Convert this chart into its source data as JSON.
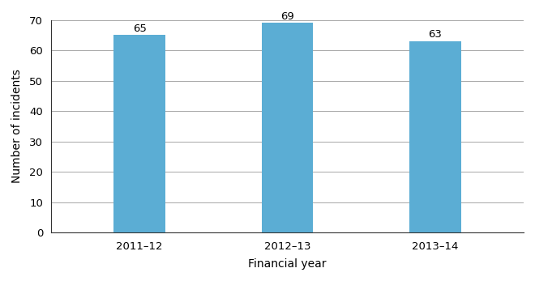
{
  "categories": [
    "2011–12",
    "2012–13",
    "2013–14"
  ],
  "values": [
    65,
    69,
    63
  ],
  "bar_color": "#5BADD4",
  "xlabel": "Financial year",
  "ylabel": "Number of incidents",
  "ylim": [
    0,
    70
  ],
  "yticks": [
    0,
    10,
    20,
    30,
    40,
    50,
    60,
    70
  ],
  "bar_width": 0.35,
  "axis_label_fontsize": 10,
  "tick_fontsize": 9.5,
  "annotation_fontsize": 9.5,
  "background_color": "#ffffff",
  "grid_color": "#999999",
  "spine_color": "#333333"
}
